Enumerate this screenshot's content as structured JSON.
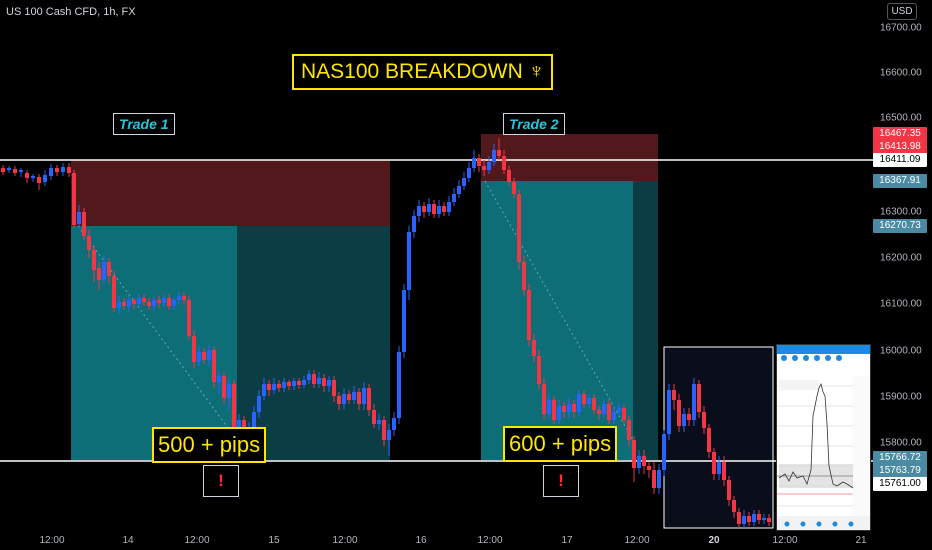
{
  "symbol": "US 100 Cash CFD, 1h, FX",
  "currency": "USD",
  "title": "NAS100 BREAKDOWN ♆",
  "trades": [
    {
      "label": "Trade 1",
      "pips": "500 + pips",
      "warning": "!"
    },
    {
      "label": "Trade 2",
      "pips": "600 + pips",
      "warning": "!"
    }
  ],
  "price_axis": [
    "16700.00",
    "16600.00",
    "16500.00",
    "16300.00",
    "16200.00",
    "16100.00",
    "16000.00",
    "15900.00",
    "15800.00"
  ],
  "price_flags": [
    {
      "text": "16467.35",
      "bg": "#f23645",
      "fg": "#ffffff"
    },
    {
      "text": "16413.98",
      "bg": "#f23645",
      "fg": "#ffffff"
    },
    {
      "text": "16411.09",
      "bg": "#ffffff",
      "fg": "#000000"
    },
    {
      "text": "16367.91",
      "bg": "#4a8ba3",
      "fg": "#ffffff"
    },
    {
      "text": "16270.73",
      "bg": "#4a8ba3",
      "fg": "#ffffff"
    },
    {
      "text": "15766.72",
      "bg": "#4a8ba3",
      "fg": "#ffffff"
    },
    {
      "text": "15763.79",
      "bg": "#4a8ba3",
      "fg": "#ffffff"
    },
    {
      "text": "15761.00",
      "bg": "#ffffff",
      "fg": "#000000"
    }
  ],
  "time_axis": [
    "12:00",
    "14",
    "12:00",
    "15",
    "12:00",
    "16",
    "12:00",
    "17",
    "12:00",
    "20",
    "12:00",
    "21"
  ],
  "colors": {
    "up": "#2962ff",
    "down": "#f23645",
    "target_zone": "#0e6e78",
    "stop_zone": "#5a1c1f",
    "accent": "#ffe600"
  }
}
